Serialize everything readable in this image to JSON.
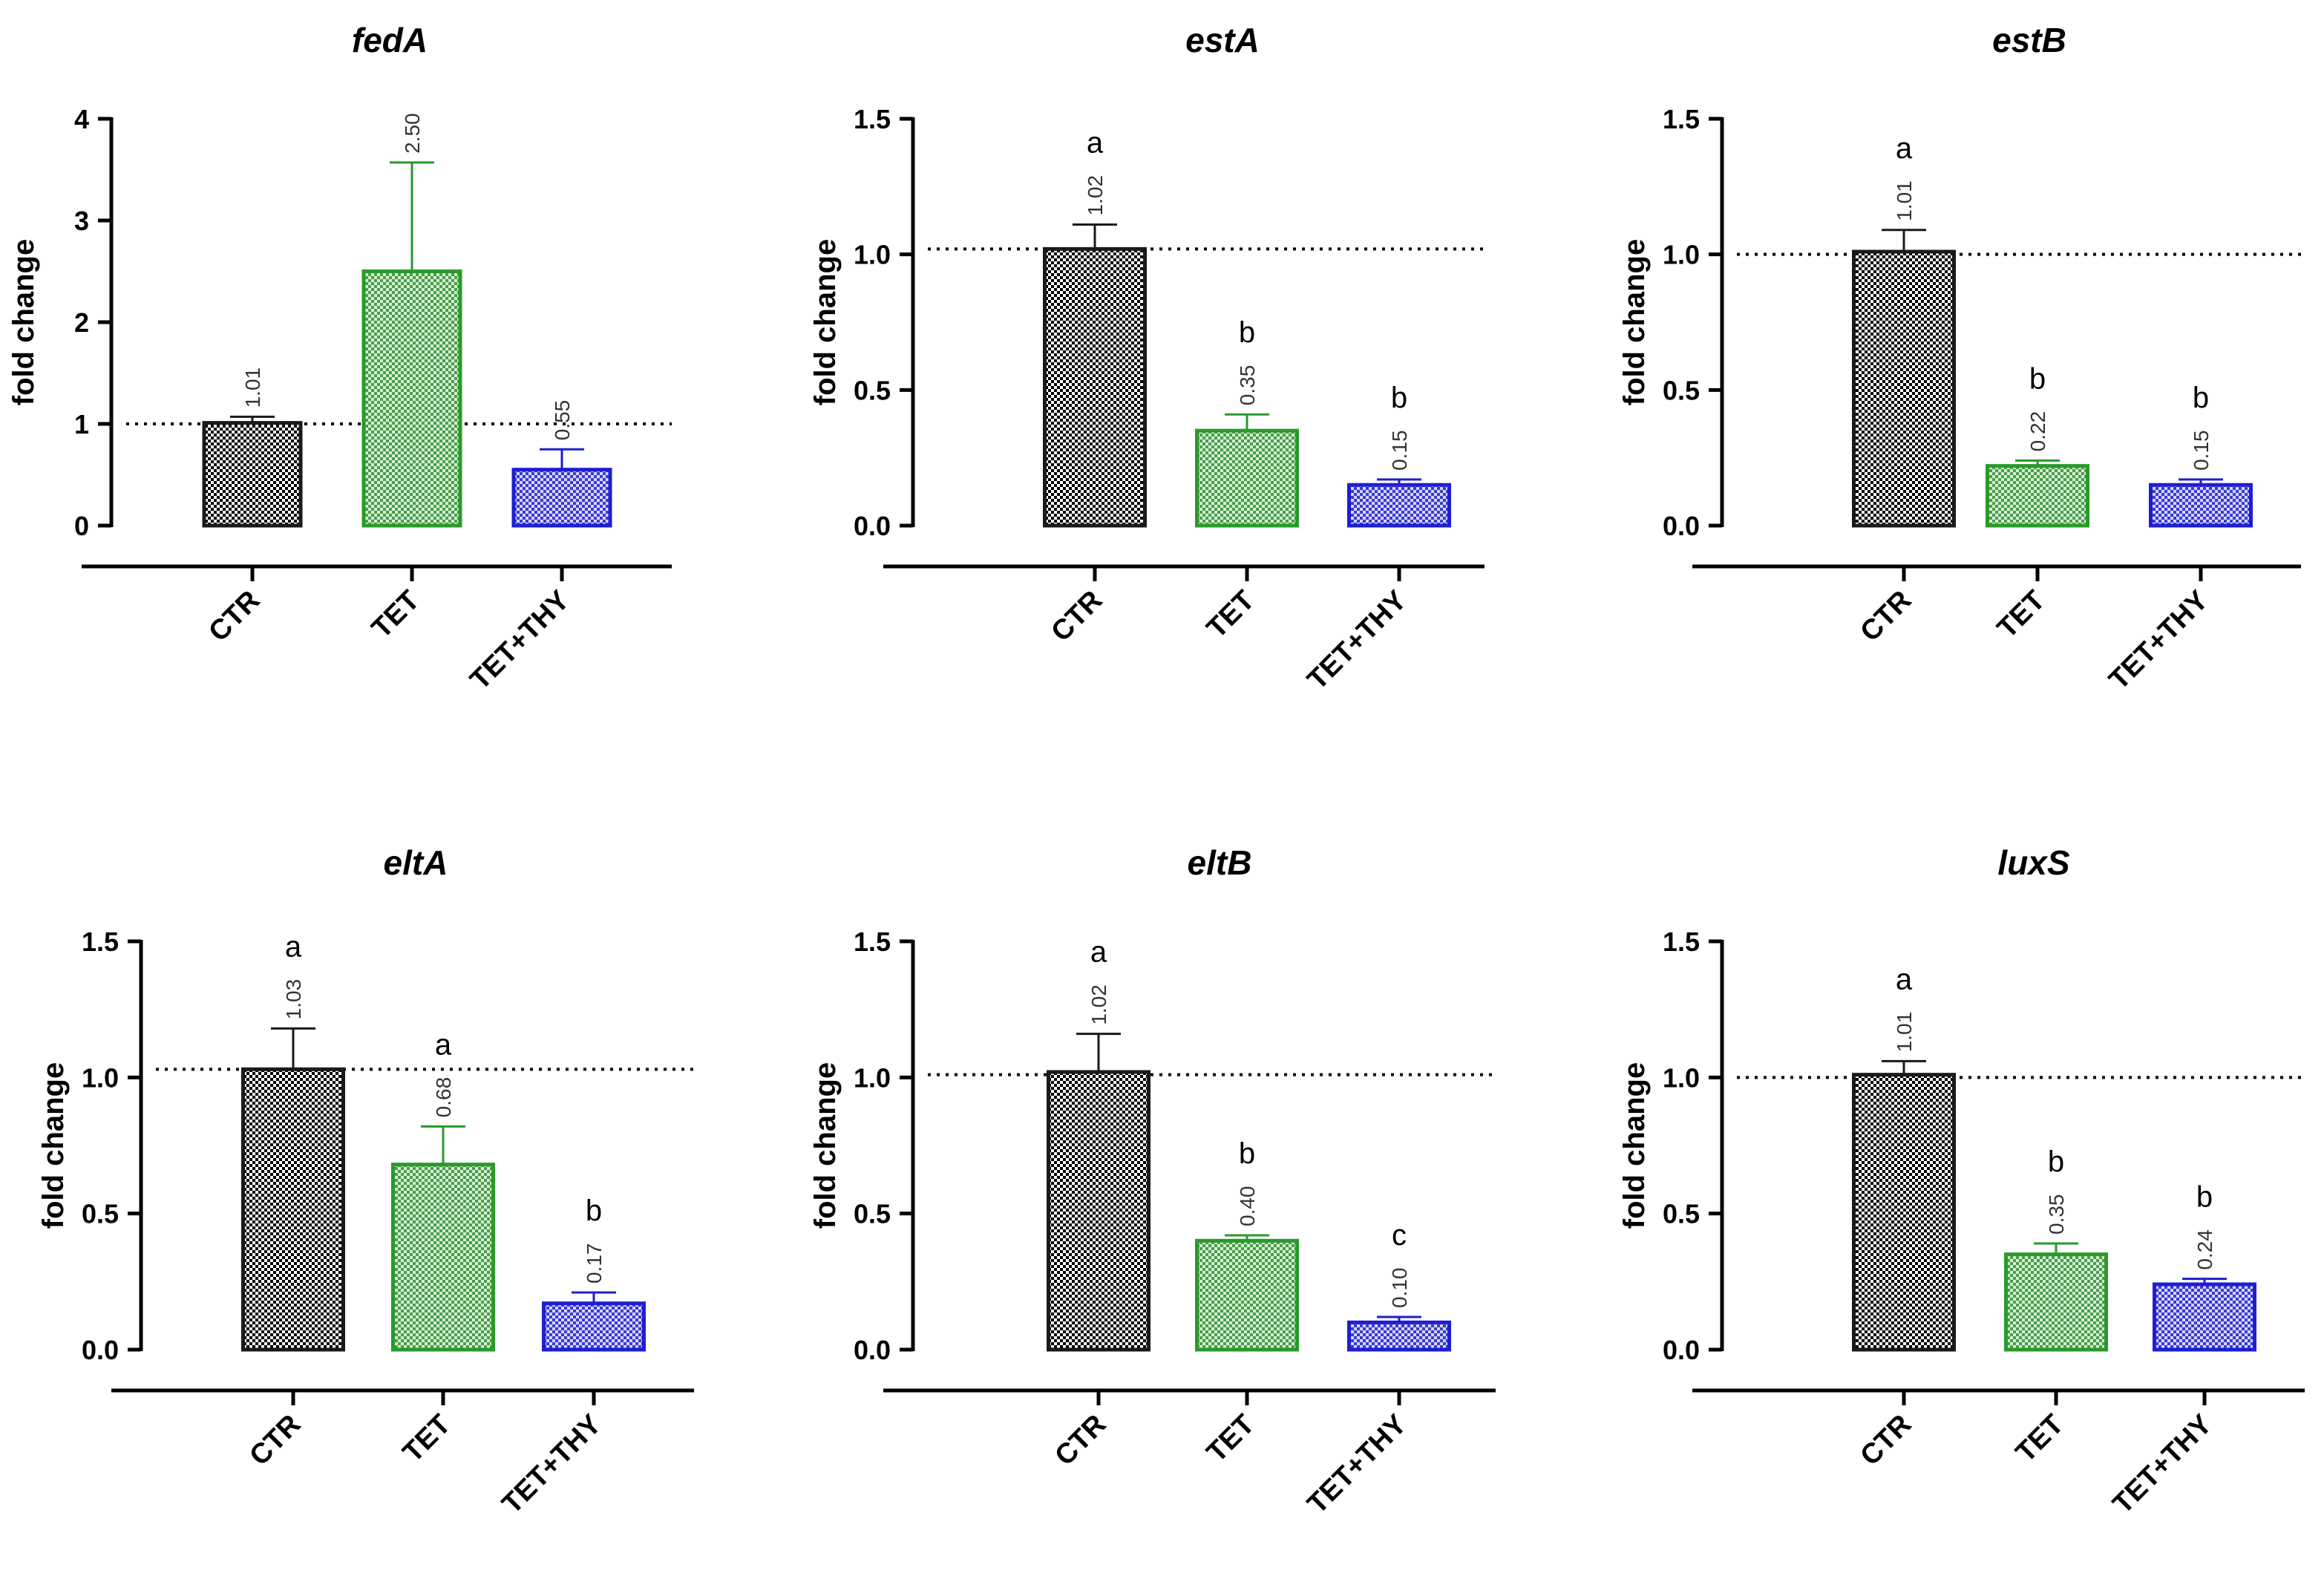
{
  "colors": {
    "CTR": "#1a1a1a",
    "TET": "#2a9a2a",
    "TET+THY": "#1e1ed2",
    "TET_fill_dark": "#4a9e4a",
    "TET_fill_light": "#d6efd6",
    "THY_fill_dark": "#3a3ad8",
    "THY_fill_light": "#d6d6f6",
    "CTR_fill_dark": "#000000",
    "CTR_fill_light": "#ffffff"
  },
  "chart_data": [
    {
      "type": "bar",
      "title": "fedA",
      "ylabel": "fold change",
      "categories": [
        "CTR",
        "TET",
        "TET+THY"
      ],
      "values": [
        1.01,
        2.5,
        0.55
      ],
      "errors": [
        0.06,
        1.07,
        0.2
      ],
      "value_labels": [
        "1.01",
        "2.50",
        "0.55"
      ],
      "letters": [
        "",
        "",
        ""
      ],
      "yticks": [
        0,
        1,
        2,
        3,
        4
      ],
      "ytick_labels": [
        "0",
        "1",
        "2",
        "3",
        "4"
      ],
      "ylim": [
        0,
        4
      ],
      "reference_line": 1.0
    },
    {
      "type": "bar",
      "title": "estA",
      "ylabel": "fold change",
      "categories": [
        "CTR",
        "TET",
        "TET+THY"
      ],
      "values": [
        1.02,
        0.35,
        0.15
      ],
      "errors": [
        0.09,
        0.06,
        0.02
      ],
      "value_labels": [
        "1.02",
        "0.35",
        "0.15"
      ],
      "letters": [
        "a",
        "b",
        "b"
      ],
      "yticks": [
        0,
        0.5,
        1.0,
        1.5
      ],
      "ytick_labels": [
        "0.0",
        "0.5",
        "1.0",
        "1.5"
      ],
      "ylim": [
        0,
        1.5
      ],
      "reference_line": 1.02
    },
    {
      "type": "bar",
      "title": "estB",
      "ylabel": "fold change",
      "categories": [
        "CTR",
        "TET",
        "TET+THY"
      ],
      "values": [
        1.01,
        0.22,
        0.15
      ],
      "errors": [
        0.08,
        0.02,
        0.02
      ],
      "value_labels": [
        "1.01",
        "0.22",
        "0.15"
      ],
      "letters": [
        "a",
        "b",
        "b"
      ],
      "yticks": [
        0,
        0.5,
        1.0,
        1.5
      ],
      "ytick_labels": [
        "0.0",
        "0.5",
        "1.0",
        "1.5"
      ],
      "ylim": [
        0,
        1.5
      ],
      "reference_line": 1.0
    },
    {
      "type": "bar",
      "title": "eltA",
      "ylabel": "fold change",
      "categories": [
        "CTR",
        "TET",
        "TET+THY"
      ],
      "values": [
        1.03,
        0.68,
        0.17
      ],
      "errors": [
        0.15,
        0.14,
        0.04
      ],
      "value_labels": [
        "1.03",
        "0.68",
        "0.17"
      ],
      "letters": [
        "a",
        "a",
        "b"
      ],
      "yticks": [
        0,
        0.5,
        1.0,
        1.5
      ],
      "ytick_labels": [
        "0.0",
        "0.5",
        "1.0",
        "1.5"
      ],
      "ylim": [
        0,
        1.5
      ],
      "reference_line": 1.03
    },
    {
      "type": "bar",
      "title": "eltB",
      "ylabel": "fold change",
      "categories": [
        "CTR",
        "TET",
        "TET+THY"
      ],
      "values": [
        1.02,
        0.4,
        0.1
      ],
      "errors": [
        0.14,
        0.02,
        0.02
      ],
      "value_labels": [
        "1.02",
        "0.40",
        "0.10"
      ],
      "letters": [
        "a",
        "b",
        "c"
      ],
      "yticks": [
        0,
        0.5,
        1.0,
        1.5
      ],
      "ytick_labels": [
        "0.0",
        "0.5",
        "1.0",
        "1.5"
      ],
      "ylim": [
        0,
        1.5
      ],
      "reference_line": 1.01
    },
    {
      "type": "bar",
      "title": "luxS",
      "ylabel": "fold change",
      "categories": [
        "CTR",
        "TET",
        "TET+THY"
      ],
      "values": [
        1.01,
        0.35,
        0.24
      ],
      "errors": [
        0.05,
        0.04,
        0.02
      ],
      "value_labels": [
        "1.01",
        "0.35",
        "0.24"
      ],
      "letters": [
        "a",
        "b",
        "b"
      ],
      "yticks": [
        0,
        0.5,
        1.0,
        1.5
      ],
      "ytick_labels": [
        "0.0",
        "0.5",
        "1.0",
        "1.5"
      ],
      "ylim": [
        0,
        1.5
      ],
      "reference_line": 1.0
    }
  ]
}
